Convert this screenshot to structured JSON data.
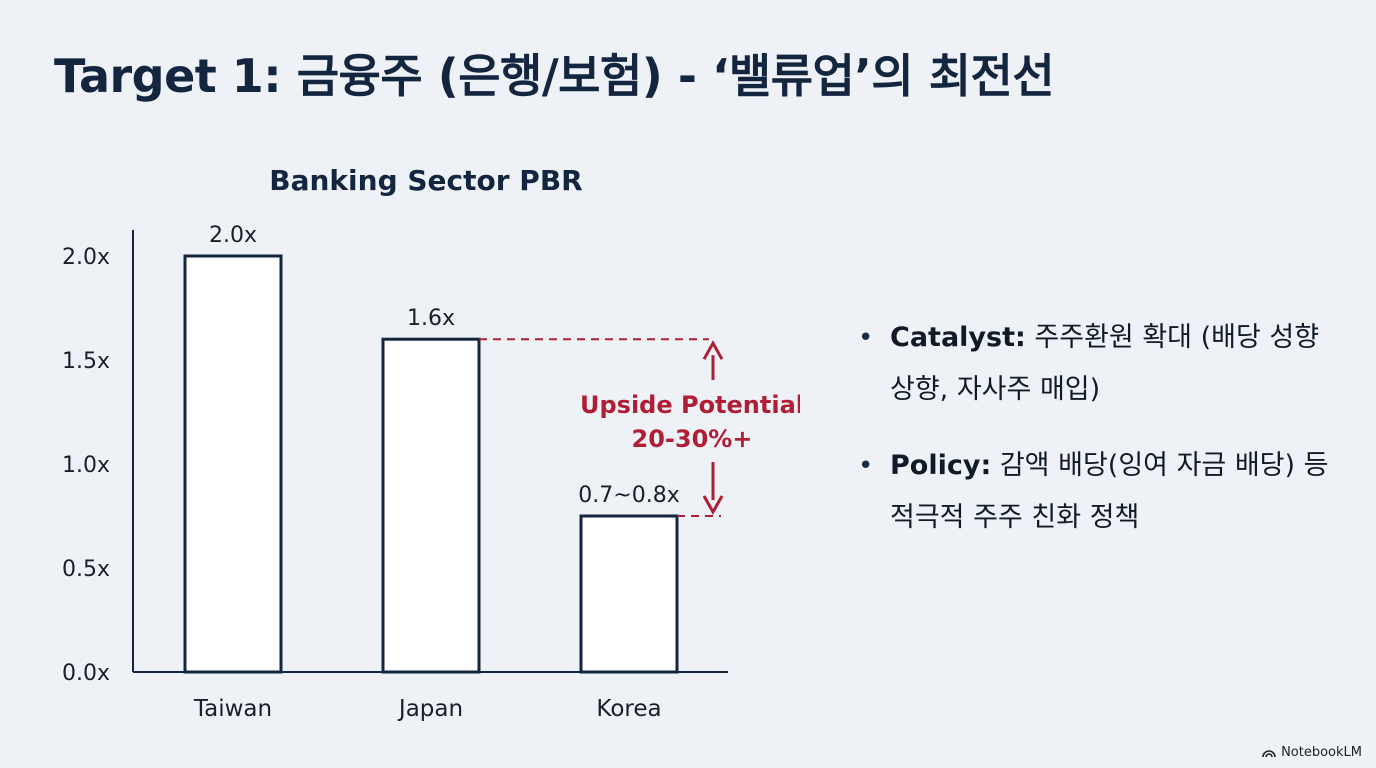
{
  "header": {
    "title": "Target 1: 금융주 (은행/보험) - ‘밸류업’의 최전선"
  },
  "chart_data": {
    "type": "bar",
    "title": "Banking Sector PBR",
    "categories": [
      "Taiwan",
      "Japan",
      "Korea"
    ],
    "values": [
      2.0,
      1.6,
      0.75
    ],
    "data_labels": [
      "2.0x",
      "1.6x",
      "0.7~0.8x"
    ],
    "ylim": [
      0,
      2.0
    ],
    "yticks": [
      0.0,
      0.5,
      1.0,
      1.5,
      2.0
    ],
    "ytick_labels": [
      "0.0x",
      "0.5x",
      "1.0x",
      "1.5x",
      "2.0x"
    ],
    "xlabel": "",
    "ylabel": "",
    "grid": false,
    "annotation": {
      "from_value": 1.6,
      "to_value": 0.75,
      "lines": [
        "Upside Potential",
        "20-30%+"
      ],
      "color": "#b01e35"
    },
    "colors": {
      "bar_stroke": "#14253f",
      "bar_fill": "#ffffff",
      "axis": "#14253f"
    }
  },
  "bullets": [
    {
      "key": "Catalyst:",
      "text": "주주환원 확대 (배당 성향 상향, 자사주 매입)"
    },
    {
      "key": "Policy:",
      "text": "감액 배당(잉여 자금 배당) 등 적극적 주주 친화 정책"
    }
  ],
  "footer": {
    "brand": "NotebookLM",
    "icon": "notebooklm-logo-icon"
  }
}
